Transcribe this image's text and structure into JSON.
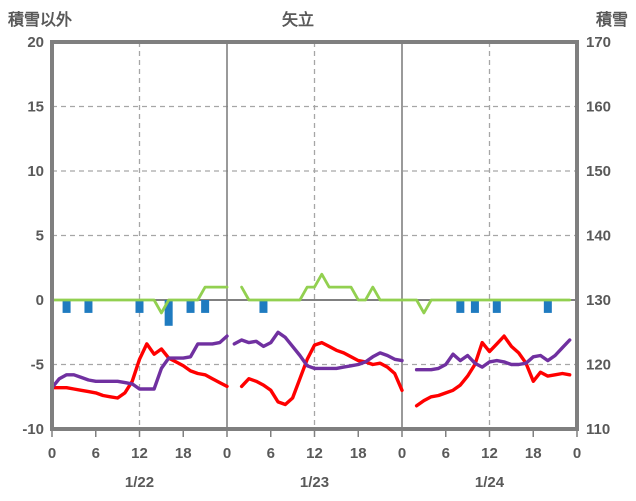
{
  "title": {
    "text": "矢立"
  },
  "left_axis": {
    "label": "積雪以外",
    "ticks": [
      20,
      15,
      10,
      5,
      0,
      -5,
      -10
    ],
    "min": -10,
    "max": 20
  },
  "right_axis": {
    "label": "積雪",
    "ticks": [
      170,
      160,
      150,
      140,
      130,
      120,
      110
    ],
    "min": 110,
    "max": 170
  },
  "x_axis": {
    "hour_tick_labels": [
      "0",
      "6",
      "12",
      "18",
      "0",
      "6",
      "12",
      "18",
      "0",
      "6",
      "12",
      "18",
      "0"
    ],
    "hour_tick_positions": [
      0,
      6,
      12,
      18,
      24,
      30,
      36,
      42,
      48,
      54,
      60,
      66,
      72
    ],
    "date_labels": [
      "1/22",
      "1/23",
      "1/24"
    ],
    "total_hours": 72
  },
  "colors": {
    "red_line": "#FF0000",
    "purple_line": "#7030A0",
    "green_line": "#92D050",
    "blue_bar": "#1F7BC0",
    "frame": "#7F7F7F",
    "zero_line": "#808080",
    "gridline": "#A6A6A6",
    "text": "#595959"
  },
  "chart_data": {
    "type": "line",
    "note_layout": "3 day panels of 24 h each; dashed vertical gridline at each 12:00, solid divider at each midnight; left scale -10..20, right scale 110..170; hourly values, null = no data",
    "dashed_vertical_hours": [
      12,
      36,
      60
    ],
    "solid_vertical_hours": [
      24,
      48
    ],
    "dashed_horizontal_values": [
      15,
      10,
      5,
      -5
    ],
    "days": [
      {
        "date": "1/22",
        "red": [
          -6.8,
          -6.8,
          -6.8,
          -6.9,
          -7.0,
          -7.1,
          -7.2,
          -7.4,
          -7.5,
          -7.6,
          -7.2,
          -6.3,
          -4.6,
          -3.4,
          -4.2,
          -3.8,
          -4.5,
          -4.8,
          -5.1,
          -5.5,
          -5.7,
          -5.8,
          -6.1,
          -6.4,
          -6.7
        ],
        "purple": [
          -6.8,
          -6.1,
          -5.8,
          -5.8,
          -6.0,
          -6.2,
          -6.3,
          -6.3,
          -6.3,
          -6.3,
          -6.4,
          -6.5,
          -6.9,
          -6.9,
          -6.9,
          -5.3,
          -4.5,
          -4.5,
          -4.5,
          -4.4,
          -3.4,
          -3.4,
          -3.4,
          -3.3,
          -2.8
        ],
        "green": [
          0,
          0,
          0,
          0,
          0,
          0,
          0,
          0,
          0,
          0,
          0,
          0,
          0,
          0,
          0,
          -1,
          0,
          0,
          0,
          0,
          0,
          1,
          1,
          1,
          1
        ],
        "blue_bars": [
          {
            "hour": 2,
            "value": -1
          },
          {
            "hour": 5,
            "value": -1
          },
          {
            "hour": 12,
            "value": -1
          },
          {
            "hour": 16,
            "value": -2
          },
          {
            "hour": 19,
            "value": -1
          },
          {
            "hour": 21,
            "value": -1
          }
        ]
      },
      {
        "date": "1/23",
        "red": [
          null,
          null,
          -6.7,
          -6.1,
          -6.3,
          -6.6,
          -7.0,
          -7.9,
          -8.1,
          -7.6,
          -6.1,
          -4.6,
          -3.5,
          -3.3,
          -3.6,
          -3.9,
          -4.1,
          -4.4,
          -4.7,
          -4.8,
          -5.0,
          -4.9,
          -5.2,
          -5.7,
          -7.0
        ],
        "purple": [
          null,
          -3.4,
          -3.1,
          -3.3,
          -3.2,
          -3.6,
          -3.3,
          -2.5,
          -2.9,
          -3.6,
          -4.3,
          -5.1,
          -5.3,
          -5.3,
          -5.3,
          -5.3,
          -5.2,
          -5.1,
          -5.0,
          -4.8,
          -4.4,
          -4.1,
          -4.3,
          -4.6,
          -4.7
        ],
        "green": [
          null,
          null,
          1,
          0,
          0,
          0,
          0,
          0,
          0,
          0,
          0,
          1,
          1,
          2,
          1,
          1,
          1,
          1,
          0,
          0,
          1,
          0,
          0,
          0,
          0
        ],
        "blue_bars": [
          {
            "hour": 5,
            "value": -1
          }
        ]
      },
      {
        "date": "1/24",
        "red": [
          null,
          null,
          -8.2,
          -7.8,
          -7.5,
          -7.4,
          -7.2,
          -7.0,
          -6.6,
          -5.9,
          -5.0,
          -3.3,
          -4.0,
          -3.4,
          -2.8,
          -3.6,
          -4.1,
          -4.9,
          -6.3,
          -5.6,
          -5.9,
          -5.8,
          -5.7,
          -5.8
        ],
        "purple": [
          null,
          null,
          -5.4,
          -5.4,
          -5.4,
          -5.3,
          -5.0,
          -4.2,
          -4.7,
          -4.3,
          -4.9,
          -5.2,
          -4.8,
          -4.7,
          -4.8,
          -5.0,
          -5.0,
          -4.9,
          -4.4,
          -4.3,
          -4.7,
          -4.3,
          -3.7,
          -3.1
        ],
        "green": [
          0,
          0,
          0,
          -1,
          0,
          0,
          0,
          0,
          0,
          0,
          0,
          0,
          0,
          0,
          0,
          0,
          0,
          0,
          0,
          0,
          0,
          0,
          0,
          0
        ],
        "blue_bars": [
          {
            "hour": 8,
            "value": -1
          },
          {
            "hour": 10,
            "value": -1
          },
          {
            "hour": 13,
            "value": -1
          },
          {
            "hour": 20,
            "value": -1
          }
        ]
      }
    ]
  }
}
